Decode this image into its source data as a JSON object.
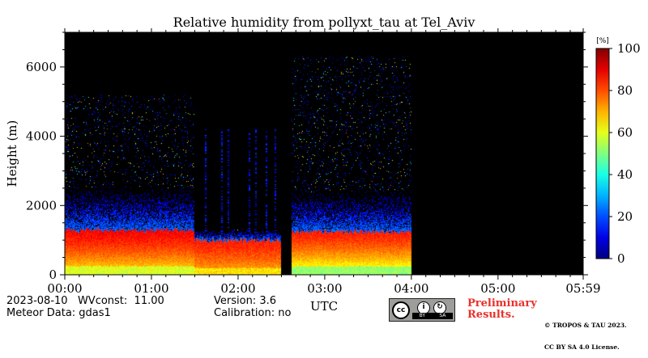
{
  "chart_data": {
    "type": "heatmap",
    "title": "Relative humidity from pollyxt_tau at Tel_Aviv",
    "xlabel": "UTC",
    "ylabel": "Height (m)",
    "x_ticks": [
      "00:00",
      "01:00",
      "02:00",
      "03:00",
      "04:00",
      "05:00",
      "05:59"
    ],
    "x_range_hours": [
      0,
      5.983
    ],
    "y_ticks": [
      0,
      2000,
      4000,
      6000
    ],
    "ylim": [
      0,
      7000
    ],
    "colorbar": {
      "unit": "[%]",
      "range": [
        0,
        100
      ],
      "ticks": [
        0,
        20,
        40,
        60,
        80,
        100
      ],
      "colormap": "jet"
    },
    "background_color": "#000000",
    "profile_segments": [
      {
        "start": 0.0,
        "end": 1.5,
        "top_m": 1300,
        "rh_low": 62,
        "rh_top": 88,
        "noise_top_m": 2500,
        "sparse_top_m": 5200
      },
      {
        "start": 1.5,
        "end": 2.5,
        "top_m": 1000,
        "rh_low": 68,
        "rh_top": 85,
        "noise_top_m": 1300,
        "sparse_top_m": 1300
      },
      {
        "start": 2.62,
        "end": 4.0,
        "top_m": 1250,
        "rh_low": 55,
        "rh_top": 85,
        "noise_top_m": 2400,
        "sparse_top_m": 6300
      }
    ],
    "data_gaps_hours": [
      [
        2.5,
        2.62
      ],
      [
        4.0,
        5.983
      ]
    ],
    "vertical_streaks_hours": [
      1.62,
      1.8,
      1.88,
      2.12,
      2.2,
      2.32,
      2.42
    ]
  },
  "footer": {
    "date_line": "2023-08-10   WVconst:  11.00",
    "meteor_line": "Meteor Data: gdas1",
    "version_line": "Version: 3.6",
    "calibration_line": "Calibration: no",
    "prelim_line1": "Preliminary",
    "prelim_line2": "Results.",
    "copyright_line1": "© TROPOS & TAU 2023.",
    "copyright_line2": "CC BY SA 4.0 License.",
    "cc_text": "cc",
    "cc_by": "BY",
    "cc_sa": "SA"
  }
}
